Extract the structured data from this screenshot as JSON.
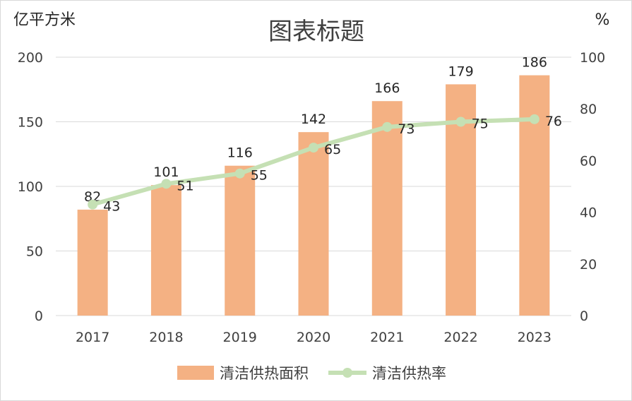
{
  "chart_data": {
    "type": "bar+line",
    "title": "图表标题",
    "categories": [
      "2017",
      "2018",
      "2019",
      "2020",
      "2021",
      "2022",
      "2023"
    ],
    "y_left": {
      "unit": "亿平方米",
      "range": [
        0,
        200
      ],
      "ticks": [
        0,
        50,
        100,
        150,
        200
      ]
    },
    "y_right": {
      "unit": "%",
      "range": [
        0,
        100
      ],
      "ticks": [
        0,
        20,
        40,
        60,
        80,
        100
      ]
    },
    "series": [
      {
        "name": "清洁供热面积",
        "type": "bar",
        "axis": "left",
        "color": "#F4B183",
        "values": [
          82,
          101,
          116,
          142,
          166,
          179,
          186
        ]
      },
      {
        "name": "清洁供热率",
        "type": "line",
        "axis": "right",
        "color": "#C5E0B4",
        "values": [
          43,
          51,
          55,
          65,
          73,
          75,
          76
        ]
      }
    ],
    "grid": true,
    "legend_position": "bottom"
  }
}
